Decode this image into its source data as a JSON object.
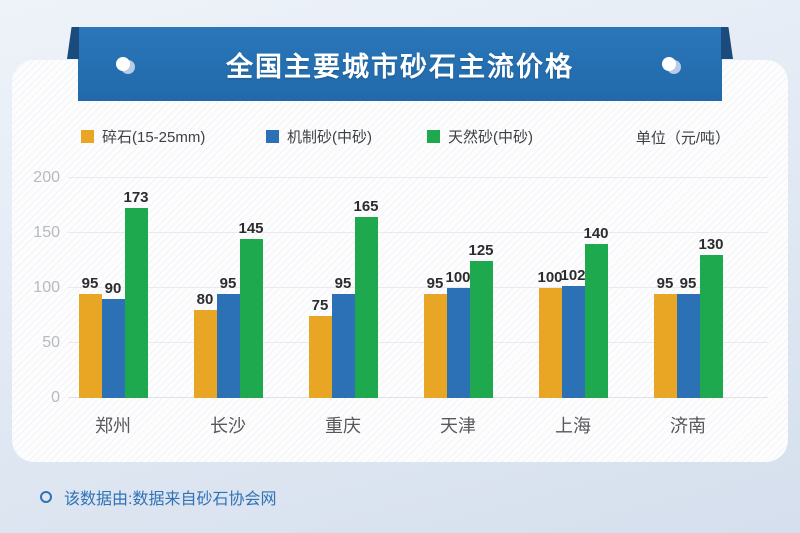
{
  "banner": {
    "title": "全国主要城市砂石主流价格"
  },
  "legend": {
    "items": [
      {
        "label": "碎石(15-25mm)",
        "color": "#e8a624"
      },
      {
        "label": "机制砂(中砂)",
        "color": "#2c70b5"
      },
      {
        "label": "天然砂(中砂)",
        "color": "#1fa94e"
      }
    ],
    "unit_label": "单位（元/吨）"
  },
  "chart_data": {
    "type": "bar",
    "title": "全国主要城市砂石主流价格",
    "categories": [
      "郑州",
      "长沙",
      "重庆",
      "天津",
      "上海",
      "济南"
    ],
    "series": [
      {
        "name": "碎石(15-25mm)",
        "color": "#e8a624",
        "values": [
          95,
          80,
          75,
          95,
          100,
          95
        ]
      },
      {
        "name": "机制砂(中砂)",
        "color": "#2c70b5",
        "values": [
          90,
          95,
          95,
          100,
          102,
          95
        ]
      },
      {
        "name": "天然砂(中砂)",
        "color": "#1fa94e",
        "values": [
          173,
          145,
          165,
          125,
          140,
          130
        ]
      }
    ],
    "unit": "元/吨",
    "ylim": [
      0,
      200
    ],
    "yticks": [
      0,
      50,
      100,
      150,
      200
    ],
    "grid": true,
    "legend_position": "top",
    "value_labels": true
  },
  "footer": {
    "note": "该数据由:数据来自砂石协会网"
  },
  "colors": {
    "banner_blue": "#2571b3",
    "banner_fold": "#1a4b7c",
    "background_top": "#eef3f9",
    "background_bottom": "#d5dfed",
    "card": "#fdfdfe",
    "footer_text": "#2f72b6",
    "axis_text": "#b7b9be",
    "value_text": "#2c2c2e"
  }
}
